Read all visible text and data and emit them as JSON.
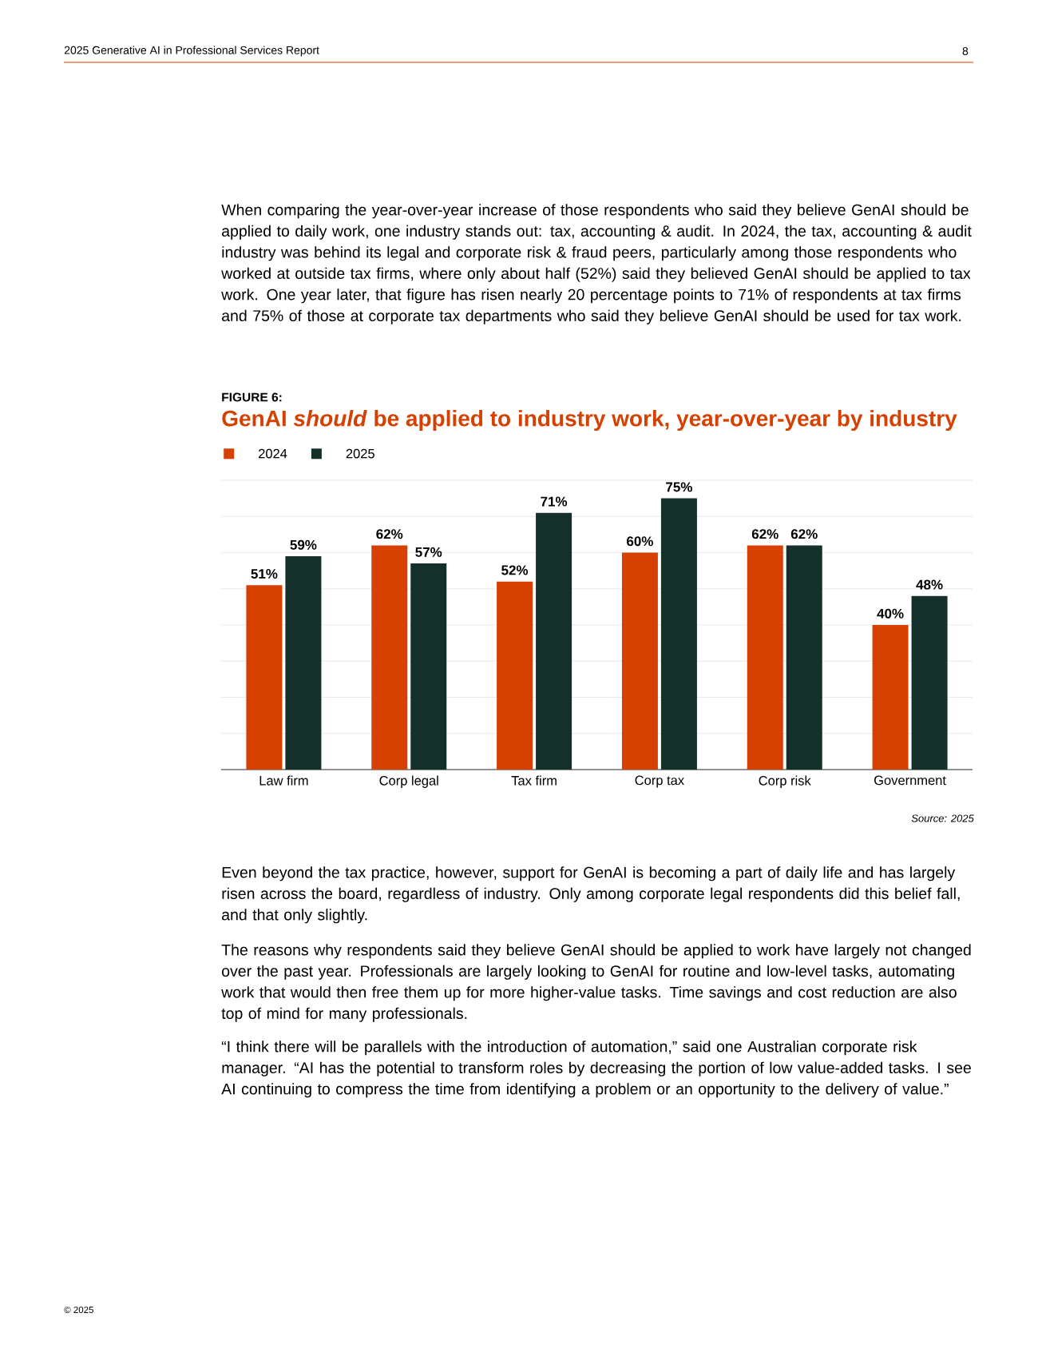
{
  "chart_data": {
    "type": "bar",
    "title": "GenAI *should* be applied to industry work, year-over-year by industry",
    "categories": [
      "Law firm",
      "Corp legal",
      "Tax firm",
      "Corp tax",
      "Corp risk",
      "Government"
    ],
    "series": [
      {
        "name": "2024",
        "color": "#d64000",
        "values": [
          51,
          62,
          52,
          60,
          62,
          40
        ],
        "value_labels": [
          "51%",
          "62%",
          "52%",
          "60%",
          "62%",
          "40%"
        ]
      },
      {
        "name": "2025",
        "color": "#14302a",
        "values": [
          59,
          57,
          71,
          75,
          62,
          48
        ],
        "value_labels": [
          "59%",
          "57%",
          "71%",
          "75%",
          "62%",
          "48%"
        ]
      }
    ],
    "ylim": [
      0,
      80
    ],
    "yticks": [
      {
        "value": 0,
        "label": null
      },
      {
        "value": 10,
        "label": null
      },
      {
        "value": 20,
        "label": null
      },
      {
        "value": 30,
        "label": null
      },
      {
        "value": 40,
        "label": null
      },
      {
        "value": 50,
        "label": null
      },
      {
        "value": 60,
        "label": null
      },
      {
        "value": 70,
        "label": null
      },
      {
        "value": 80,
        "label": null
      }
    ],
    "grid": "y",
    "legend": "top left",
    "tick_labels": "x",
    "annotations": [
      "2025 Generative AI in Professional Services Report",
      "8",
      "When comparing the year-over-year increase of those respondents who said they believe GenAI should be applied to daily work, one industry stands out: tax, accounting & audit. In 2024, the tax, accounting & audit industry was behind its legal and corporate risk & fraud peers, particularly among those respondents who worked at outside tax firms, where only about half (52%) said they believed GenAI should be applied to tax work. One year later, that figure has risen nearly 20 percentage points to 71% of respondents at tax firms and 75% of those at corporate tax departments who said they believe GenAI should be used for tax work.",
      "FIGURE 6:",
      "Source: 2025",
      "Even beyond the tax practice, however, support for GenAI is becoming a part of daily life and has largely risen across the board, regardless of industry. Only among corporate legal respondents did this belief fall, and that only slightly.",
      "The reasons why respondents said they believe GenAI should be applied to work have largely not changed over the past year. Professionals are largely looking to GenAI for routine and low-level tasks, automating work that would then free them up for more higher-value tasks. Time savings and cost reduction are also top of mind for many professionals.",
      "“I think there will be parallels with the introduction of automation,” said one Australian corporate risk manager. “AI has the potential to transform roles by decreasing the portion of low value-added tasks. I see AI continuing to compress the time from identifying a problem or an opportunity to the delivery of value.”",
      "© 2025"
    ]
  }
}
